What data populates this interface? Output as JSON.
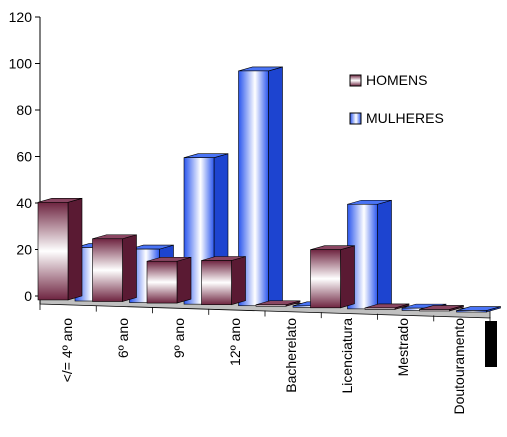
{
  "chart_data": {
    "type": "bar",
    "categories": [
      "</= 4º ano",
      "6º ano",
      "9º ano",
      "12º ano",
      "Bacherelato",
      "Licenciatura",
      "Mestrado",
      "Doutouramento"
    ],
    "series": [
      {
        "name": "HOMENS",
        "values": [
          42,
          27,
          18,
          19,
          0,
          25,
          0,
          0
        ]
      },
      {
        "name": "MULHERES",
        "values": [
          23,
          23,
          63,
          101,
          0,
          45,
          1,
          0
        ]
      }
    ],
    "y_ticks": [
      "0",
      "20",
      "40",
      "60",
      "80",
      "100",
      "120"
    ],
    "ylim": [
      0,
      120
    ],
    "legend_position": "right",
    "colors": {
      "HOMENS": "#7a2c48",
      "MULHERES": "#2f5ff2"
    }
  }
}
